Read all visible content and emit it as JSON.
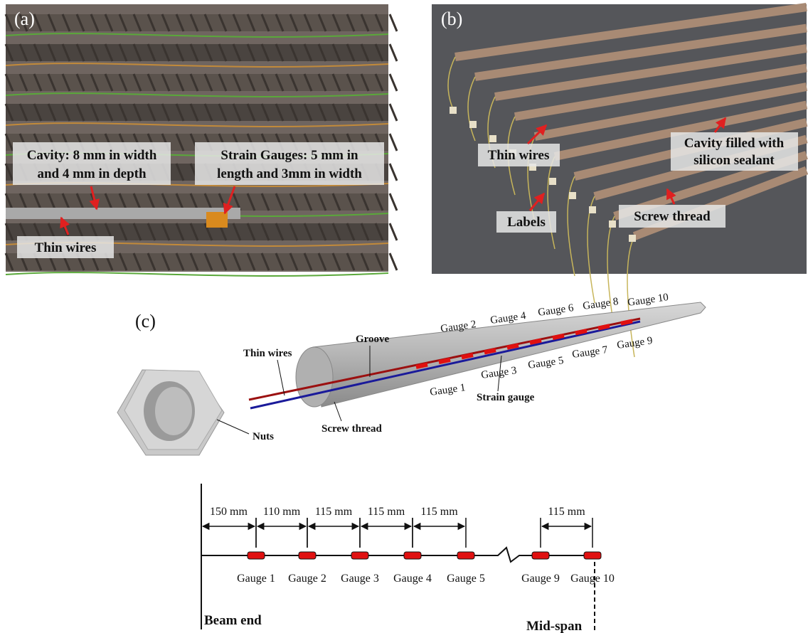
{
  "panel_a": {
    "label": "(a)",
    "cavity": [
      "Cavity: 8 mm in width",
      "and 4 mm in depth"
    ],
    "strain_gauges": [
      "Strain Gauges: 5 mm in",
      "length and 3mm in width"
    ],
    "thin_wires": "Thin wires"
  },
  "panel_b": {
    "label": "(b)",
    "thin_wires": "Thin wires",
    "cavity": [
      "Cavity filled with",
      "silicon sealant"
    ],
    "labels": "Labels",
    "screw_thread": "Screw thread"
  },
  "panel_c": {
    "label": "(c)",
    "gauges": [
      "Gauge 1",
      "Gauge 2",
      "Gauge 3",
      "Gauge 4",
      "Gauge 5",
      "Gauge 6",
      "Gauge 7",
      "Gauge 8",
      "Gauge 9",
      "Gauge 10"
    ],
    "groove": "Groove",
    "thin_wires": "Thin wires",
    "strain_gauge": "Strain gauge",
    "screw_thread": "Screw thread",
    "nuts": "Nuts"
  },
  "layout": {
    "spacings": [
      "150 mm",
      "110 mm",
      "115 mm",
      "115 mm",
      "115 mm",
      "115 mm"
    ],
    "gauges": [
      "Gauge 1",
      "Gauge 2",
      "Gauge 3",
      "Gauge 4",
      "Gauge 5",
      "Gauge 9",
      "Gauge 10"
    ],
    "beam_end": "Beam end",
    "mid_span": "Mid-span"
  }
}
